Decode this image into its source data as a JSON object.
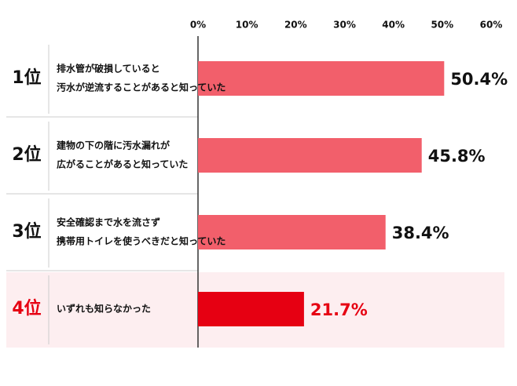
{
  "chart_data": {
    "type": "bar",
    "orientation": "horizontal",
    "ranks": [
      "1位",
      "2位",
      "3位",
      "4位"
    ],
    "categories": [
      [
        "排水管が破損していると",
        "汚水が逆流することがあると知っていた"
      ],
      [
        "建物の下の階に汚水漏れが",
        "広がることがあると知っていた"
      ],
      [
        "安全確認まで水を流さず",
        "携帯用トイレを使うべきだと知っていた"
      ],
      [
        "いずれも知らなかった"
      ]
    ],
    "values": [
      50.4,
      45.8,
      38.4,
      21.7
    ],
    "value_labels": [
      "50.4%",
      "45.8%",
      "38.4%",
      "21.7%"
    ],
    "colors": [
      "#f25f6b",
      "#f25f6b",
      "#f25f6b",
      "#e60012"
    ],
    "highlight": 3,
    "highlight_background": "#fdeef0",
    "xlim": [
      0,
      60
    ],
    "xticks": [
      {
        "value": 0,
        "label": "0%"
      },
      {
        "value": 10,
        "label": "10%"
      },
      {
        "value": 20,
        "label": "20%"
      },
      {
        "value": 30,
        "label": "30%"
      },
      {
        "value": 40,
        "label": "40%"
      },
      {
        "value": 50,
        "label": "50%"
      },
      {
        "value": 60,
        "label": "60%"
      }
    ]
  }
}
